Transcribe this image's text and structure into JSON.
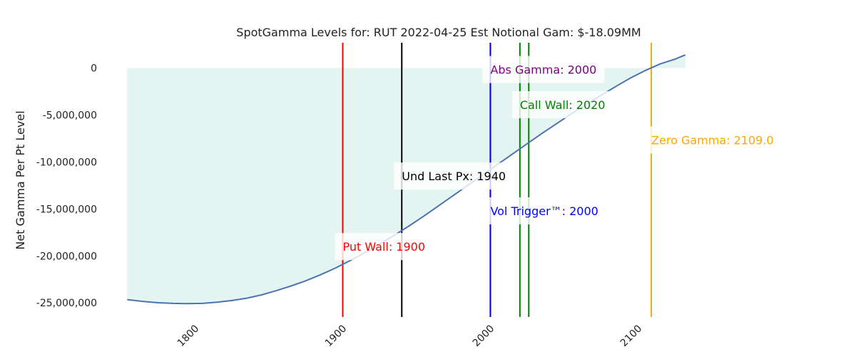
{
  "chart_data": {
    "type": "area",
    "title": "SpotGamma Levels for: RUT  2022-04-25 Est Notional Gam: $-18.09MM",
    "xlabel": "",
    "ylabel": "Net Gamma Per Pt Level",
    "xlim": [
      1750,
      2180
    ],
    "ylim": [
      -26500000,
      2700000
    ],
    "grid": false,
    "x_ticks": [
      1800,
      1900,
      2000,
      2100
    ],
    "x_tick_labels": [
      "1800",
      "1900",
      "2000",
      "2100"
    ],
    "y_ticks": [
      0,
      -5000000,
      -10000000,
      -15000000,
      -20000000,
      -25000000
    ],
    "y_tick_labels": [
      "0",
      "-5,000,000",
      "-10,000,000",
      "-15,000,000",
      "-20,000,000",
      "-25,000,000"
    ],
    "curve": {
      "color": "#4c72b0",
      "fill_color": "#e3f4f1",
      "x": [
        1754,
        1765,
        1775,
        1785,
        1795,
        1805,
        1815,
        1825,
        1835,
        1845,
        1855,
        1865,
        1875,
        1885,
        1895,
        1905,
        1915,
        1925,
        1935,
        1945,
        1955,
        1965,
        1975,
        1985,
        1995,
        2005,
        2015,
        2025,
        2035,
        2045,
        2055,
        2065,
        2075,
        2085,
        2095,
        2105,
        2115,
        2125,
        2132
      ],
      "y": [
        -24650000,
        -24850000,
        -24980000,
        -25050000,
        -25080000,
        -25050000,
        -24930000,
        -24750000,
        -24500000,
        -24150000,
        -23700000,
        -23200000,
        -22650000,
        -22000000,
        -21300000,
        -20500000,
        -19650000,
        -18750000,
        -17800000,
        -16800000,
        -15750000,
        -14650000,
        -13550000,
        -12450000,
        -11350000,
        -10250000,
        -9150000,
        -8050000,
        -6950000,
        -5900000,
        -4850000,
        -3850000,
        -2900000,
        -1950000,
        -1050000,
        -250000,
        450000,
        950000,
        1400000
      ]
    },
    "levels": [
      {
        "label": "Put Wall: 1900",
        "x": 1900,
        "color": "#ff0000",
        "label_y": -19000000
      },
      {
        "label": "Und Last Px: 1940",
        "x": 1940,
        "color": "#000000",
        "label_y": -11500000
      },
      {
        "label": "Abs Gamma: 2000",
        "x": 2000,
        "color": "#800080",
        "label_y": -150000
      },
      {
        "label": "Vol Trigger™: 2000",
        "x": 2000,
        "color": "#0000ff",
        "label_y": -15200000
      },
      {
        "label": "Call Wall: 2020",
        "x": 2020,
        "color": "#008000",
        "label_y": -3900000
      },
      {
        "label": "",
        "x": 2026,
        "color": "#008000",
        "label_y": null
      },
      {
        "label": "Zero Gamma: 2109.0",
        "x": 2109,
        "color": "#ffa500",
        "label_y": -7650000
      }
    ]
  }
}
